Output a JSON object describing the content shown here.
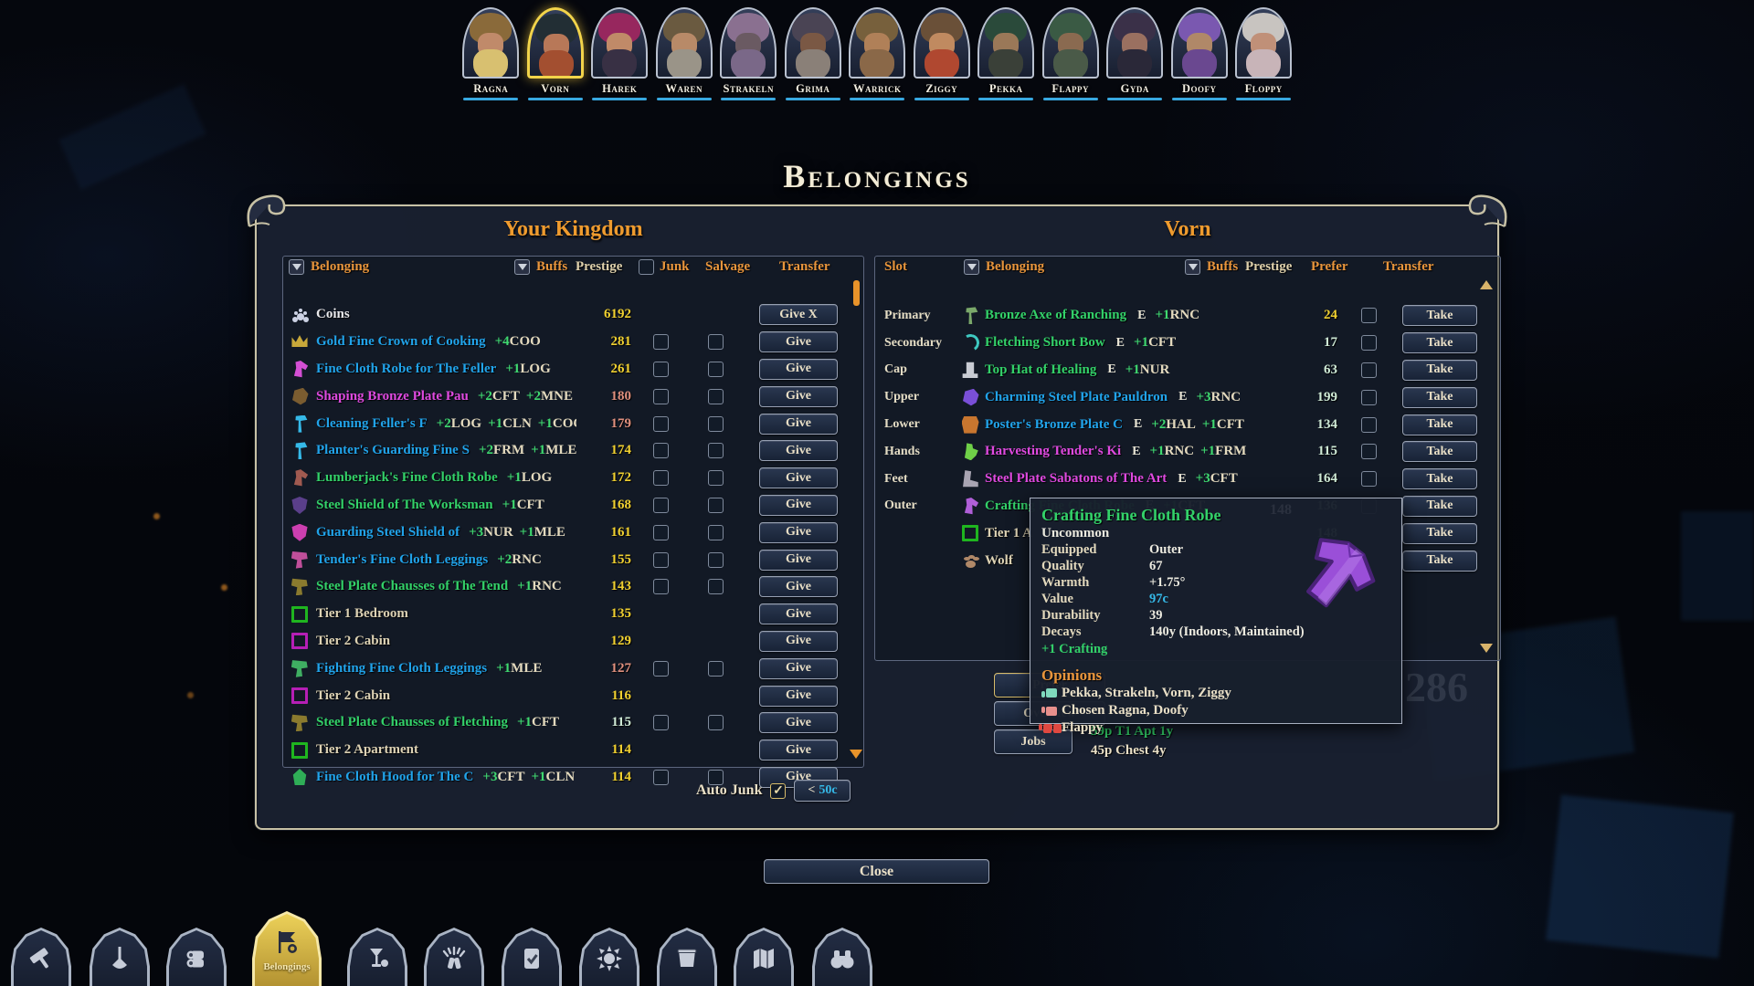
{
  "title": "Belongings",
  "close_label": "Close",
  "colors": {
    "accent_orange": "#e8953c",
    "gold_highlight": "#f2d44a",
    "underline_cyan": "#38a8e0",
    "prestige_yellow": "#f0d030",
    "prestige_salmon": "#e0907e",
    "prestige_pale": "#cfead6",
    "item_cyan": "#21a3ea",
    "item_green": "#33d169",
    "item_magenta": "#df4ae0"
  },
  "characters": [
    {
      "name": "Ragna",
      "selected": false,
      "hat": "#8a6a3a",
      "skin": "#c08a6a",
      "beard": "#d8c070"
    },
    {
      "name": "Vorn",
      "selected": true,
      "hat": "#222e34",
      "skin": "#b87858",
      "beard": "#a34f30"
    },
    {
      "name": "Harek",
      "selected": false,
      "hat": "#97275e",
      "skin": "#c08a68",
      "beard": "#383044"
    },
    {
      "name": "Waren",
      "selected": false,
      "hat": "#6a5a40",
      "skin": "#b88a68",
      "beard": "#9a9488"
    },
    {
      "name": "Strakeln",
      "selected": false,
      "hat": "#8a7090",
      "skin": "#6a5a62",
      "beard": "#7a6888"
    },
    {
      "name": "Grima",
      "selected": false,
      "hat": "#4a4454",
      "skin": "#7a5844",
      "beard": "#8a8078"
    },
    {
      "name": "Warrick",
      "selected": false,
      "hat": "#77603c",
      "skin": "#b08058",
      "beard": "#8a6848"
    },
    {
      "name": "Ziggy",
      "selected": false,
      "hat": "#6a5038",
      "skin": "#c08a60",
      "beard": "#b04830"
    },
    {
      "name": "Pekka",
      "selected": false,
      "hat": "#2a4a3a",
      "skin": "#9a7858",
      "beard": "#3a4038"
    },
    {
      "name": "Flappy",
      "selected": false,
      "hat": "#3a5a44",
      "skin": "#8a6a50",
      "beard": "#4a5a48"
    },
    {
      "name": "Gyda",
      "selected": false,
      "hat": "#3a3048",
      "skin": "#9a7060",
      "beard": "#2a2838"
    },
    {
      "name": "Doofy",
      "selected": false,
      "hat": "#7a58b0",
      "skin": "#b08868",
      "beard": "#6a4890"
    },
    {
      "name": "Floppy",
      "selected": false,
      "hat": "#c8c4c0",
      "skin": "#c09078",
      "beard": "#c8b4b8"
    }
  ],
  "panel": {
    "left": {
      "title": "Your Kingdom",
      "headers": {
        "belonging": "Belonging",
        "buffs": "Buffs",
        "prestige": "Prestige",
        "junk": "Junk",
        "salvage": "Salvage",
        "transfer": "Transfer"
      },
      "rows": [
        {
          "name": "Coins",
          "color": "white",
          "icon": "coins",
          "icon_color": "#ccd2e4",
          "buffs": [],
          "prestige": "6192",
          "pcolor": "yellow",
          "junk": false,
          "salvage": false,
          "transfer": "Give X"
        },
        {
          "name": "Gold Fine Crown of Cooking",
          "color": "cyan",
          "icon": "crown",
          "icon_color": "#c8a83a",
          "buffs": [
            [
              "+4",
              "COO"
            ]
          ],
          "prestige": "281",
          "pcolor": "yellow",
          "junk": true,
          "salvage": true,
          "transfer": "Give"
        },
        {
          "name": "Fine Cloth Robe for The Feller",
          "color": "cyan",
          "icon": "robe",
          "icon_color": "#d44fd4",
          "buffs": [
            [
              "+1",
              "LOG"
            ]
          ],
          "prestige": "261",
          "pcolor": "yellow",
          "junk": true,
          "salvage": true,
          "transfer": "Give"
        },
        {
          "name": "Shaping Bronze Plate Pau",
          "color": "magenta",
          "icon": "pauldron",
          "icon_color": "#7a5c30",
          "buffs": [
            [
              "+2",
              "CFT"
            ],
            [
              "+2",
              "MNE"
            ]
          ],
          "prestige": "180",
          "pcolor": "salmon",
          "junk": true,
          "salvage": true,
          "transfer": "Give"
        },
        {
          "name": "Cleaning Feller's F",
          "color": "cyan",
          "icon": "axe",
          "icon_color": "#35b9e8",
          "buffs": [
            [
              "+2",
              "LOG"
            ],
            [
              "+1",
              "CLN"
            ],
            [
              "+1",
              "COO"
            ]
          ],
          "prestige": "179",
          "pcolor": "salmon",
          "junk": true,
          "salvage": true,
          "transfer": "Give"
        },
        {
          "name": "Planter's Guarding Fine S",
          "color": "cyan",
          "icon": "axe",
          "icon_color": "#35b9e8",
          "buffs": [
            [
              "+2",
              "FRM"
            ],
            [
              "+1",
              "MLE"
            ]
          ],
          "prestige": "174",
          "pcolor": "yellow",
          "junk": true,
          "salvage": true,
          "transfer": "Give"
        },
        {
          "name": "Lumberjack's Fine Cloth Robe",
          "color": "green",
          "icon": "robe",
          "icon_color": "#a05a50",
          "buffs": [
            [
              "+1",
              "LOG"
            ]
          ],
          "prestige": "172",
          "pcolor": "yellow",
          "junk": true,
          "salvage": true,
          "transfer": "Give"
        },
        {
          "name": "Steel Shield of The Worksman",
          "color": "green",
          "icon": "shield",
          "icon_color": "#5a3f8a",
          "buffs": [
            [
              "+1",
              "CFT"
            ]
          ],
          "prestige": "168",
          "pcolor": "yellow",
          "junk": true,
          "salvage": true,
          "transfer": "Give"
        },
        {
          "name": "Guarding Steel Shield of",
          "color": "cyan",
          "icon": "shield",
          "icon_color": "#cc3fb0",
          "buffs": [
            [
              "+3",
              "NUR"
            ],
            [
              "+1",
              "MLE"
            ]
          ],
          "prestige": "161",
          "pcolor": "yellow",
          "junk": true,
          "salvage": true,
          "transfer": "Give"
        },
        {
          "name": "Tender's Fine Cloth Leggings",
          "color": "cyan",
          "icon": "leggings",
          "icon_color": "#c04f9a",
          "buffs": [
            [
              "+2",
              "RNC"
            ]
          ],
          "prestige": "155",
          "pcolor": "yellow",
          "junk": true,
          "salvage": true,
          "transfer": "Give"
        },
        {
          "name": "Steel Plate Chausses of The Tend",
          "color": "green",
          "icon": "leggings",
          "icon_color": "#8a7a2e",
          "buffs": [
            [
              "+1",
              "RNC"
            ]
          ],
          "prestige": "143",
          "pcolor": "yellow",
          "junk": true,
          "salvage": true,
          "transfer": "Give"
        },
        {
          "name": "Tier 1 Bedroom",
          "color": "tan",
          "icon": "square",
          "icon_color": "#1fb51f",
          "buffs": [],
          "prestige": "135",
          "pcolor": "yellow",
          "junk": false,
          "salvage": false,
          "transfer": "Give"
        },
        {
          "name": "Tier 2 Cabin",
          "color": "tan",
          "icon": "square",
          "icon_color": "#b51fb5",
          "buffs": [],
          "prestige": "129",
          "pcolor": "yellow",
          "junk": false,
          "salvage": false,
          "transfer": "Give"
        },
        {
          "name": "Fighting Fine Cloth Leggings",
          "color": "cyan",
          "icon": "leggings",
          "icon_color": "#3fae62",
          "buffs": [
            [
              "+1",
              "MLE"
            ]
          ],
          "prestige": "127",
          "pcolor": "salmon",
          "junk": true,
          "salvage": true,
          "transfer": "Give"
        },
        {
          "name": "Tier 2 Cabin",
          "color": "tan",
          "icon": "square",
          "icon_color": "#b51fb5",
          "buffs": [],
          "prestige": "116",
          "pcolor": "yellow",
          "junk": false,
          "salvage": false,
          "transfer": "Give"
        },
        {
          "name": "Steel Plate Chausses of Fletching",
          "color": "green",
          "icon": "leggings",
          "icon_color": "#8a7a2e",
          "buffs": [
            [
              "+1",
              "CFT"
            ]
          ],
          "prestige": "115",
          "pcolor": "pale",
          "junk": true,
          "salvage": true,
          "transfer": "Give"
        },
        {
          "name": "Tier 2 Apartment",
          "color": "tan",
          "icon": "square",
          "icon_color": "#1fb51f",
          "buffs": [],
          "prestige": "114",
          "pcolor": "yellow",
          "junk": false,
          "salvage": false,
          "transfer": "Give"
        },
        {
          "name": "Fine Cloth Hood for The C",
          "color": "cyan",
          "icon": "hood",
          "icon_color": "#2fae57",
          "buffs": [
            [
              "+3",
              "CFT"
            ],
            [
              "+1",
              "CLN"
            ]
          ],
          "prestige": "114",
          "pcolor": "yellow",
          "junk": true,
          "salvage": true,
          "transfer": "Give"
        }
      ],
      "auto_junk": {
        "label": "Auto Junk",
        "checked": true,
        "button_prefix": "<",
        "button_value": "50c"
      }
    },
    "right": {
      "title": "Vorn",
      "headers": {
        "slot": "Slot",
        "belonging": "Belonging",
        "buffs": "Buffs",
        "prestige": "Prestige",
        "prefer": "Prefer",
        "transfer": "Transfer"
      },
      "rows": [
        {
          "slot": "Primary",
          "name": "Bronze Axe of Ranching",
          "color": "green",
          "icon": "axe",
          "icon_color": "#7aa86a",
          "equipped": "E",
          "buffs": [
            [
              "+1",
              "RNC"
            ]
          ],
          "prestige": "24",
          "pcolor": "yellow",
          "prefer": true,
          "transfer": "Take"
        },
        {
          "slot": "Secondary",
          "name": "Fletching Short Bow",
          "color": "green",
          "icon": "bow",
          "icon_color": "#3ec8c0",
          "equipped": "E",
          "buffs": [
            [
              "+1",
              "CFT"
            ]
          ],
          "prestige": "17",
          "pcolor": "pale",
          "prefer": true,
          "transfer": "Take"
        },
        {
          "slot": "Cap",
          "name": "Top Hat of Healing",
          "color": "green",
          "icon": "tophat",
          "icon_color": "#c9ccd4",
          "equipped": "E",
          "buffs": [
            [
              "+1",
              "NUR"
            ]
          ],
          "prestige": "63",
          "pcolor": "pale",
          "prefer": true,
          "transfer": "Take"
        },
        {
          "slot": "Upper",
          "name": "Charming Steel Plate Pauldron",
          "color": "cyan",
          "icon": "pauldron",
          "icon_color": "#7a4fd8",
          "equipped": "E",
          "buffs": [
            [
              "+3",
              "RNC"
            ]
          ],
          "prestige": "199",
          "pcolor": "pale",
          "prefer": true,
          "transfer": "Take"
        },
        {
          "slot": "Lower",
          "name": "Poster's Bronze Plate C",
          "color": "cyan",
          "icon": "plate",
          "icon_color": "#c8762f",
          "equipped": "E",
          "buffs": [
            [
              "+2",
              "HAL"
            ],
            [
              "+1",
              "CFT"
            ]
          ],
          "prestige": "134",
          "pcolor": "pale",
          "prefer": true,
          "transfer": "Take"
        },
        {
          "slot": "Hands",
          "name": "Harvesting Tender's Ki",
          "color": "magenta",
          "icon": "gloves",
          "icon_color": "#6fd048",
          "equipped": "E",
          "buffs": [
            [
              "+1",
              "RNC"
            ],
            [
              "+1",
              "FRM"
            ]
          ],
          "prestige": "115",
          "pcolor": "pale",
          "prefer": true,
          "transfer": "Take"
        },
        {
          "slot": "Feet",
          "name": "Steel Plate Sabatons of The Art",
          "color": "magenta",
          "icon": "boots",
          "icon_color": "#a8a4b2",
          "equipped": "E",
          "buffs": [
            [
              "+3",
              "CFT"
            ]
          ],
          "prestige": "164",
          "pcolor": "pale",
          "prefer": true,
          "transfer": "Take"
        },
        {
          "slot": "Outer",
          "name": "Crafting Fine Cloth Robe",
          "color": "green",
          "icon": "robe",
          "icon_color": "#b05fd8",
          "equipped": "E",
          "buffs": [
            [
              "+1",
              "CFT"
            ]
          ],
          "prestige": "136",
          "pcolor": "pale",
          "prefer": true,
          "transfer": "Take"
        },
        {
          "slot": "",
          "name": "Tier 1 A",
          "color": "tan",
          "icon": "square",
          "icon_color": "#1fb51f",
          "equipped": "",
          "buffs": [],
          "prestige": "148",
          "pcolor": "pale",
          "prefer": false,
          "transfer": "Take"
        },
        {
          "slot": "",
          "name": "Wolf",
          "color": "tan",
          "icon": "paw",
          "icon_color": "#b08868",
          "equipped": "",
          "buffs": [],
          "prestige": "",
          "pcolor": "pale",
          "prefer": false,
          "transfer": "Take"
        }
      ],
      "buttons": {
        "prefer": "Prefer",
        "overview": "Overview",
        "jobs": "Jobs"
      },
      "ambition_value": "286",
      "notes": [
        {
          "text": "59p T1 Apt 1y",
          "color": "#33d169"
        },
        {
          "text": "45p Chest 4y",
          "color": "#e9dfc6"
        }
      ]
    }
  },
  "tooltip": {
    "title": "Crafting Fine Cloth Robe",
    "rarity": "Uncommon",
    "stats": [
      {
        "label": "Equipped",
        "value": "Outer",
        "cyan": false
      },
      {
        "label": "Quality",
        "value": "67",
        "cyan": false
      },
      {
        "label": "Warmth",
        "value": "+1.75°",
        "cyan": false
      },
      {
        "label": "Value",
        "value": "97c",
        "cyan": true
      },
      {
        "label": "Durability",
        "value": "39",
        "cyan": false
      },
      {
        "label": "Decays",
        "value": "140y (Indoors, Maintained)",
        "cyan": false
      }
    ],
    "bonus": "+1 Crafting",
    "faint_prestige": "148",
    "opinions_header": "Opinions",
    "opinions": [
      {
        "type": "up",
        "text": "Pekka, Strakeln, Vorn, Ziggy"
      },
      {
        "type": "down",
        "text": "Chosen Ragna, Doofy"
      },
      {
        "type": "ddown",
        "text": "Flappy"
      }
    ]
  },
  "toolbar": {
    "items": [
      {
        "icon": "hammer",
        "active": false,
        "label": ""
      },
      {
        "icon": "shovel",
        "active": false,
        "label": ""
      },
      {
        "icon": "logs",
        "active": false,
        "label": ""
      },
      {
        "icon": "belongings",
        "active": true,
        "label": "Belongings"
      },
      {
        "icon": "tavern",
        "active": false,
        "label": ""
      },
      {
        "icon": "celebration",
        "active": false,
        "label": ""
      },
      {
        "icon": "tasks",
        "active": false,
        "label": ""
      },
      {
        "icon": "sun",
        "active": false,
        "label": ""
      },
      {
        "icon": "bed",
        "active": false,
        "label": ""
      },
      {
        "icon": "map",
        "active": false,
        "label": ""
      },
      {
        "icon": "binoculars",
        "active": false,
        "label": ""
      }
    ]
  }
}
